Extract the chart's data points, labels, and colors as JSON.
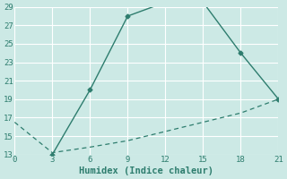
{
  "line1_x": [
    3,
    6,
    9,
    12,
    15,
    18,
    21
  ],
  "line1_y": [
    13,
    20,
    28,
    29.5,
    29.5,
    24,
    19
  ],
  "line2_x": [
    0,
    3,
    6,
    9,
    12,
    15,
    18,
    21
  ],
  "line2_y": [
    16.5,
    13.2,
    13.8,
    14.5,
    15.5,
    16.5,
    17.5,
    19
  ],
  "line_color": "#2e7d6e",
  "bg_color": "#cce9e5",
  "grid_color": "#b0d8d3",
  "xlabel": "Humidex (Indice chaleur)",
  "xlim": [
    0,
    21
  ],
  "ylim": [
    13,
    29
  ],
  "xticks": [
    0,
    3,
    6,
    9,
    12,
    15,
    18,
    21
  ],
  "yticks": [
    13,
    15,
    17,
    19,
    21,
    23,
    25,
    27,
    29
  ],
  "tick_fontsize": 6.5,
  "xlabel_fontsize": 7.5
}
